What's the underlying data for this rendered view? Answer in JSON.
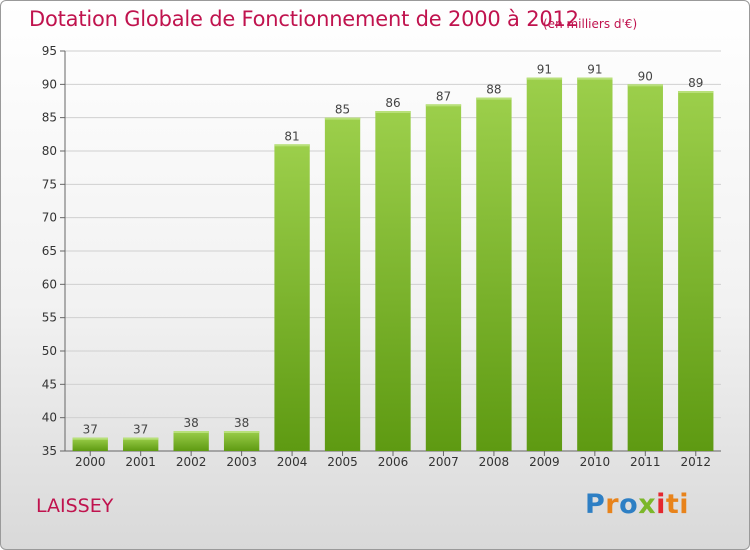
{
  "header": {
    "title": "Dotation Globale de Fonctionnement de 2000 à 2012",
    "unit": "(en milliers d'€)"
  },
  "footer": {
    "commune": "LAISSEY",
    "logo_letters": [
      "P",
      "r",
      "o",
      "x",
      "i",
      "ti"
    ]
  },
  "colors": {
    "title": "#c0134e",
    "bar_top": "#9ccf4b",
    "bar_bottom": "#5e9a12",
    "grid": "#d0d0d0"
  },
  "chart_data": {
    "type": "bar",
    "title": "Dotation Globale de Fonctionnement de 2000 à 2012",
    "subtitle": "(en milliers d'€)",
    "categories": [
      "2000",
      "2001",
      "2002",
      "2003",
      "2004",
      "2005",
      "2006",
      "2007",
      "2008",
      "2009",
      "2010",
      "2011",
      "2012"
    ],
    "values": [
      37,
      37,
      38,
      38,
      81,
      85,
      86,
      87,
      88,
      91,
      91,
      90,
      89
    ],
    "ylim": [
      35,
      95
    ],
    "yticks": [
      35,
      40,
      45,
      50,
      55,
      60,
      65,
      70,
      75,
      80,
      85,
      90,
      95
    ],
    "grid": true,
    "legend": "none"
  }
}
